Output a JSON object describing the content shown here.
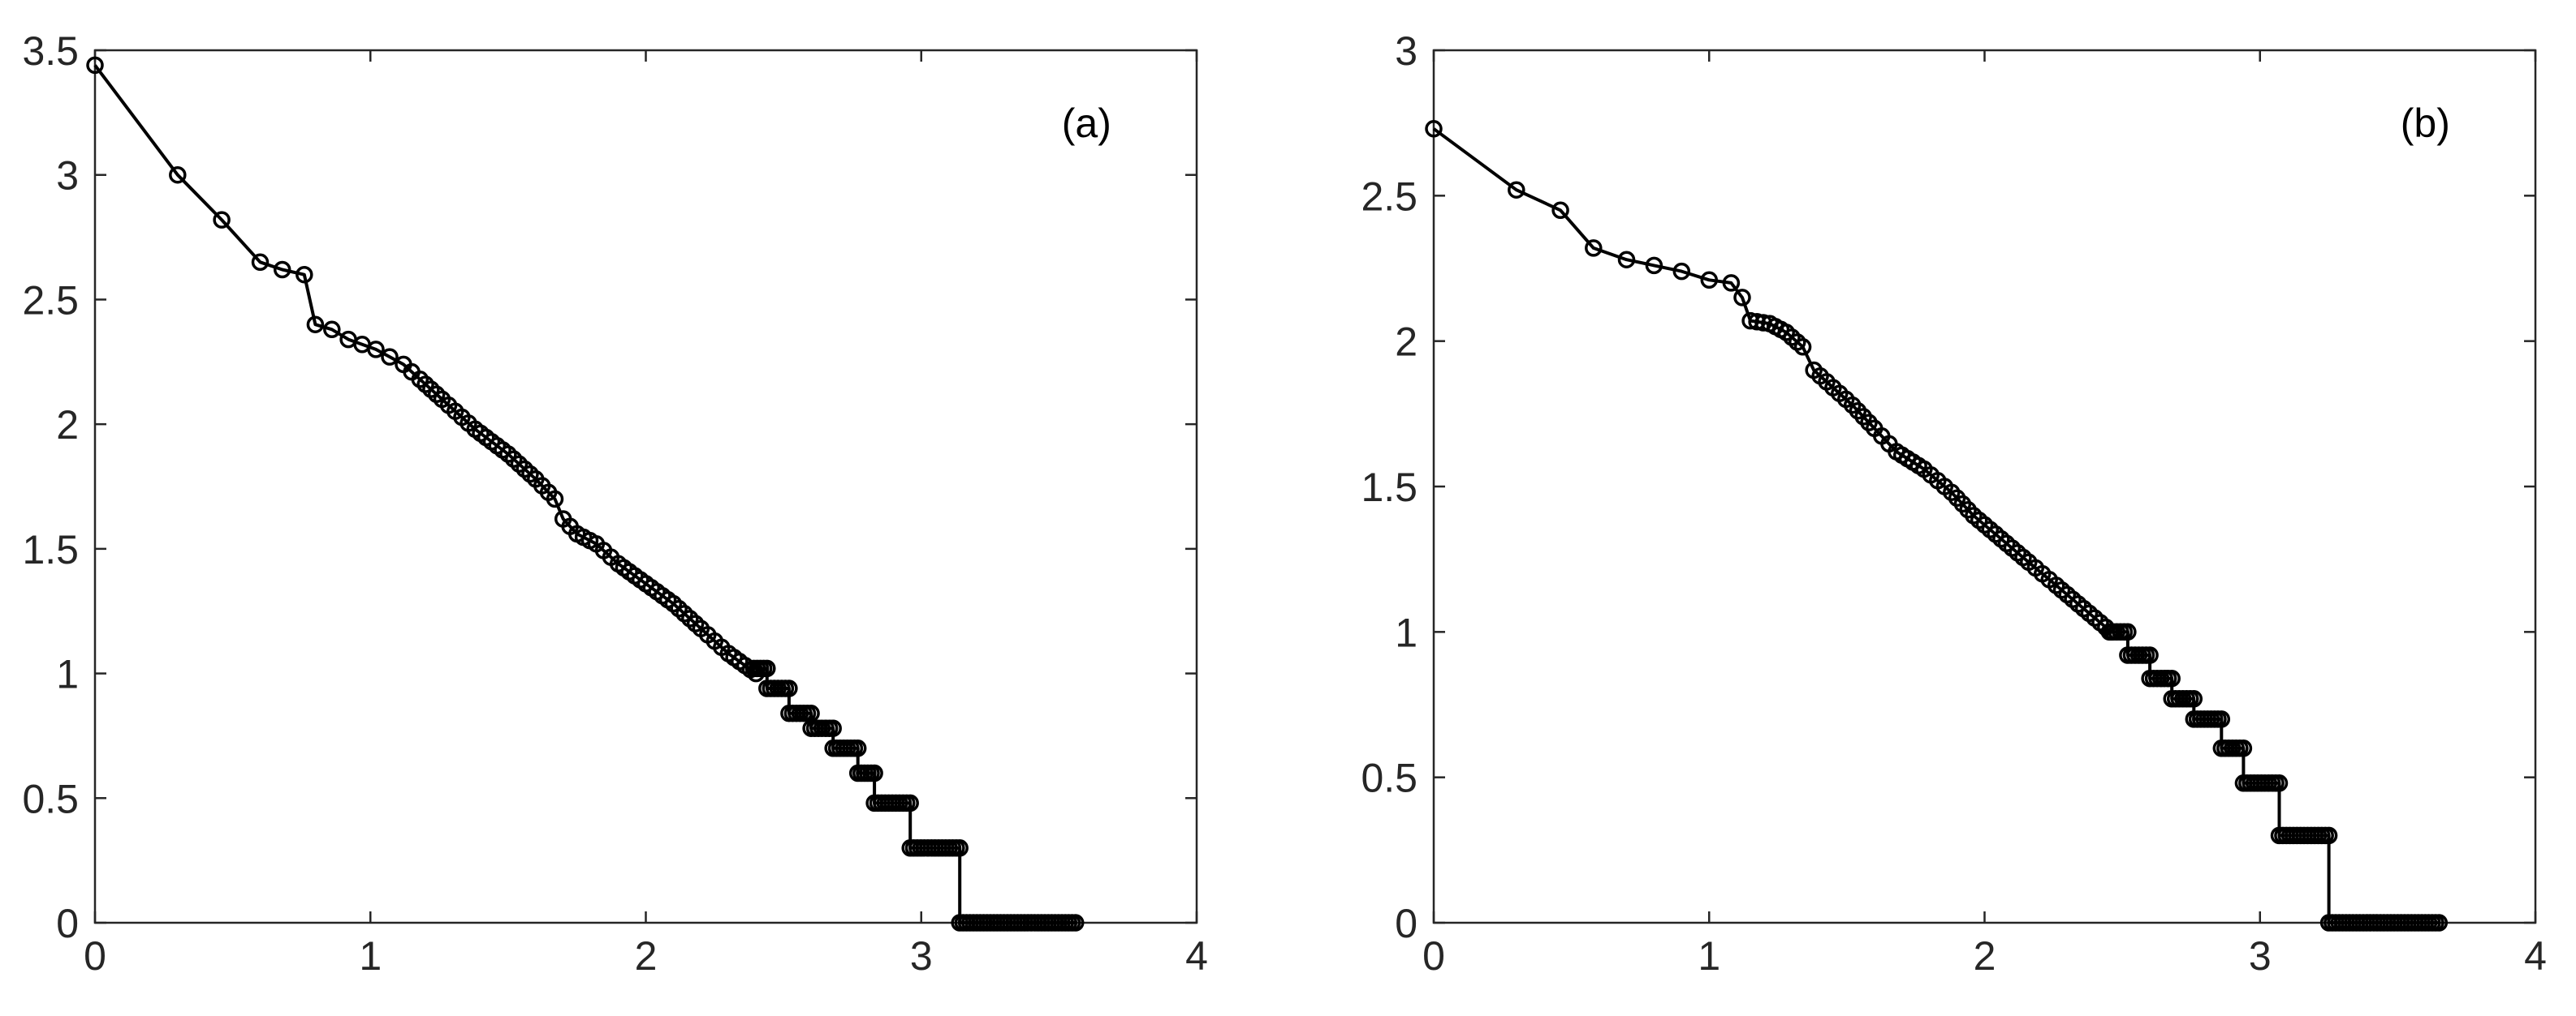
{
  "chart_data": [
    {
      "type": "line",
      "panel_label": "(a)",
      "xlim": [
        0,
        4
      ],
      "ylim": [
        0,
        3.5
      ],
      "xticks": [
        "0",
        "1",
        "2",
        "3",
        "4"
      ],
      "yticks": [
        "0",
        "0.5",
        "1",
        "1.5",
        "2",
        "2.5",
        "3",
        "3.5"
      ],
      "grid": false,
      "line_color": "#000000",
      "marker": "circle",
      "knots": [
        [
          0,
          3.44
        ],
        [
          0.3,
          3.0
        ],
        [
          0.46,
          2.82
        ],
        [
          0.6,
          2.65
        ],
        [
          0.68,
          2.62
        ],
        [
          0.76,
          2.6
        ],
        [
          0.8,
          2.4
        ],
        [
          0.86,
          2.38
        ],
        [
          0.92,
          2.34
        ],
        [
          0.97,
          2.32
        ],
        [
          1.02,
          2.3
        ],
        [
          1.07,
          2.27
        ],
        [
          1.12,
          2.24
        ],
        [
          1.18,
          2.18
        ],
        [
          1.26,
          2.1
        ],
        [
          1.38,
          1.98
        ],
        [
          1.5,
          1.88
        ],
        [
          1.6,
          1.78
        ],
        [
          1.67,
          1.7
        ],
        [
          1.7,
          1.62
        ],
        [
          1.75,
          1.56
        ],
        [
          1.82,
          1.52
        ],
        [
          1.9,
          1.44
        ],
        [
          2.0,
          1.36
        ],
        [
          2.1,
          1.28
        ],
        [
          2.2,
          1.18
        ],
        [
          2.3,
          1.08
        ],
        [
          2.4,
          1.0
        ]
      ],
      "steps": [
        {
          "x0": 2.38,
          "x1": 2.44,
          "y": 1.02
        },
        {
          "x0": 2.44,
          "x1": 2.52,
          "y": 0.94
        },
        {
          "x0": 2.52,
          "x1": 2.6,
          "y": 0.84
        },
        {
          "x0": 2.6,
          "x1": 2.68,
          "y": 0.78
        },
        {
          "x0": 2.68,
          "x1": 2.77,
          "y": 0.7
        },
        {
          "x0": 2.77,
          "x1": 2.83,
          "y": 0.6
        },
        {
          "x0": 2.83,
          "x1": 2.96,
          "y": 0.48
        },
        {
          "x0": 2.96,
          "x1": 3.14,
          "y": 0.3
        },
        {
          "x0": 3.14,
          "x1": 3.56,
          "y": 0.0
        }
      ]
    },
    {
      "type": "line",
      "panel_label": "(b)",
      "xlim": [
        0,
        4
      ],
      "ylim": [
        0,
        3
      ],
      "xticks": [
        "0",
        "1",
        "2",
        "3",
        "4"
      ],
      "yticks": [
        "0",
        "0.5",
        "1",
        "1.5",
        "2",
        "2.5",
        "3"
      ],
      "grid": false,
      "line_color": "#000000",
      "marker": "circle",
      "knots": [
        [
          0,
          2.73
        ],
        [
          0.3,
          2.52
        ],
        [
          0.46,
          2.45
        ],
        [
          0.58,
          2.32
        ],
        [
          0.7,
          2.28
        ],
        [
          0.8,
          2.26
        ],
        [
          0.9,
          2.24
        ],
        [
          1.0,
          2.21
        ],
        [
          1.08,
          2.2
        ],
        [
          1.12,
          2.15
        ],
        [
          1.15,
          2.07
        ],
        [
          1.22,
          2.06
        ],
        [
          1.28,
          2.03
        ],
        [
          1.34,
          1.98
        ],
        [
          1.38,
          1.9
        ],
        [
          1.45,
          1.84
        ],
        [
          1.52,
          1.78
        ],
        [
          1.6,
          1.7
        ],
        [
          1.68,
          1.62
        ],
        [
          1.78,
          1.56
        ],
        [
          1.88,
          1.48
        ],
        [
          1.96,
          1.4
        ],
        [
          2.06,
          1.32
        ],
        [
          2.16,
          1.24
        ],
        [
          2.26,
          1.16
        ],
        [
          2.36,
          1.08
        ],
        [
          2.46,
          1.0
        ]
      ],
      "steps": [
        {
          "x0": 2.44,
          "x1": 2.52,
          "y": 1.0
        },
        {
          "x0": 2.52,
          "x1": 2.6,
          "y": 0.92
        },
        {
          "x0": 2.6,
          "x1": 2.68,
          "y": 0.84
        },
        {
          "x0": 2.68,
          "x1": 2.76,
          "y": 0.77
        },
        {
          "x0": 2.76,
          "x1": 2.86,
          "y": 0.7
        },
        {
          "x0": 2.86,
          "x1": 2.94,
          "y": 0.6
        },
        {
          "x0": 2.94,
          "x1": 3.07,
          "y": 0.48
        },
        {
          "x0": 3.07,
          "x1": 3.25,
          "y": 0.3
        },
        {
          "x0": 3.25,
          "x1": 3.65,
          "y": 0.0
        }
      ]
    }
  ]
}
